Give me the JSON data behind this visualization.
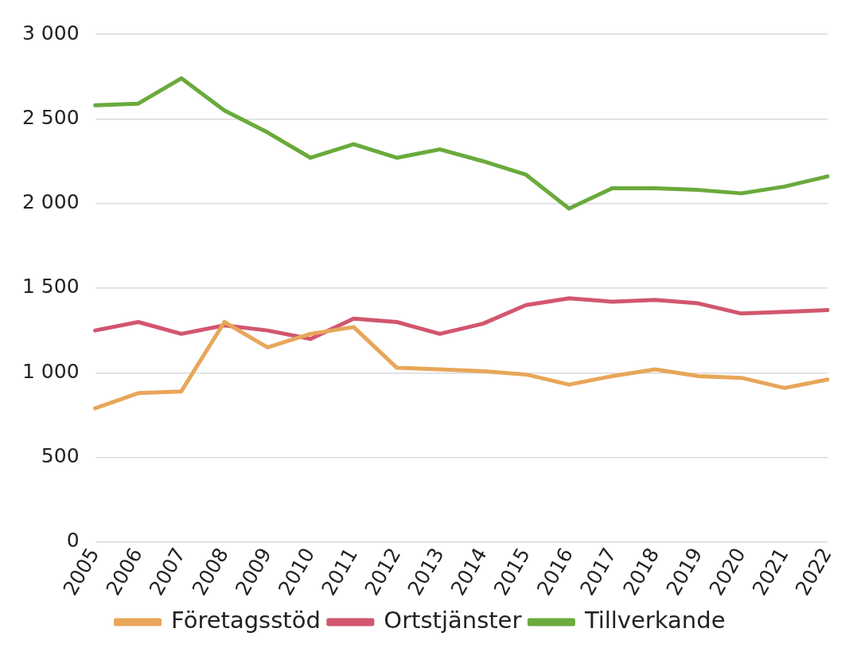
{
  "chart_data": {
    "type": "line",
    "categories": [
      "2005",
      "2006",
      "2007",
      "2008",
      "2009",
      "2010",
      "2011",
      "2012",
      "2013",
      "2014",
      "2015",
      "2016",
      "2017",
      "2018",
      "2019",
      "2020",
      "2021",
      "2022"
    ],
    "series": [
      {
        "name": "Företagsstöd",
        "color": "#e8a65a",
        "values": [
          790,
          880,
          890,
          1300,
          1150,
          1230,
          1270,
          1030,
          1020,
          1010,
          990,
          930,
          980,
          1020,
          980,
          970,
          910,
          960
        ]
      },
      {
        "name": "Ortstjänster",
        "color": "#d2566e",
        "values": [
          1250,
          1300,
          1230,
          1280,
          1250,
          1200,
          1320,
          1300,
          1230,
          1290,
          1400,
          1440,
          1420,
          1430,
          1410,
          1350,
          1360,
          1370
        ]
      },
      {
        "name": "Tillverkande",
        "color": "#6aaa3c",
        "values": [
          2580,
          2590,
          2740,
          2550,
          2420,
          2270,
          2350,
          2270,
          2320,
          2250,
          2170,
          1970,
          2090,
          2090,
          2080,
          2060,
          2100,
          2160
        ]
      }
    ],
    "ylim": [
      0,
      3000
    ],
    "yticks": [
      0,
      500,
      {
        "value": 1000,
        "label": "1 000"
      },
      {
        "value": 1500,
        "label": "1 500"
      },
      {
        "value": 2000,
        "label": "2 000"
      },
      {
        "value": 2500,
        "label": "2 500"
      },
      {
        "value": 3000,
        "label": "3 000"
      }
    ],
    "grid": "y",
    "legend": "bottom",
    "marker": "none",
    "line_style": "solid"
  }
}
